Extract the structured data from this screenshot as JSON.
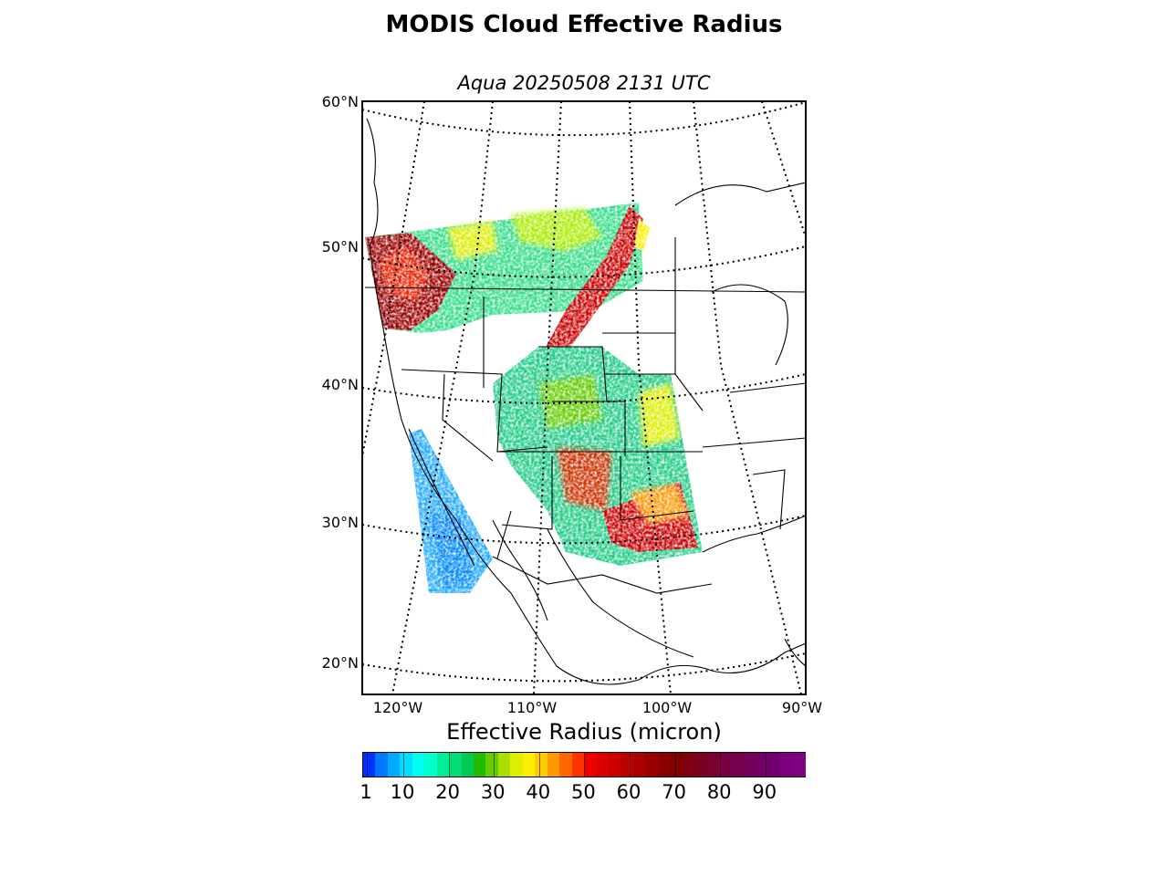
{
  "title": "MODIS Cloud Effective Radius",
  "subtitle": "Aqua 20250508 2131 UTC",
  "map": {
    "projection": "lambert-conformal",
    "lat_labels": [
      "60°N",
      "50°N",
      "40°N",
      "30°N",
      "20°N"
    ],
    "lon_labels": [
      "120°W",
      "110°W",
      "100°W",
      "90°W"
    ],
    "graticule_style": "dotted",
    "coastlines_color": "#000000",
    "swath_color_field": "cloud-effective-radius"
  },
  "colorbar": {
    "title": "Effective Radius (micron)",
    "tick_labels": [
      "1",
      "10",
      "20",
      "30",
      "40",
      "50",
      "60",
      "70",
      "80",
      "90"
    ],
    "colors": [
      "#0033ff",
      "#0077ff",
      "#00aaff",
      "#00ddff",
      "#00ffee",
      "#00ffcc",
      "#00ee99",
      "#00dd77",
      "#00cc55",
      "#22bb00",
      "#66cc00",
      "#aadd00",
      "#ddee00",
      "#ffee00",
      "#ffcc00",
      "#ff9900",
      "#ff6600",
      "#ff3300",
      "#ee0000",
      "#dd0000",
      "#cc0000",
      "#bb0000",
      "#aa0000",
      "#990000",
      "#880000",
      "#800000",
      "#7f0010",
      "#7c0020",
      "#7a0030",
      "#780040",
      "#76004c",
      "#740058",
      "#720064",
      "#700070",
      "#7a0080",
      "#800080"
    ]
  }
}
